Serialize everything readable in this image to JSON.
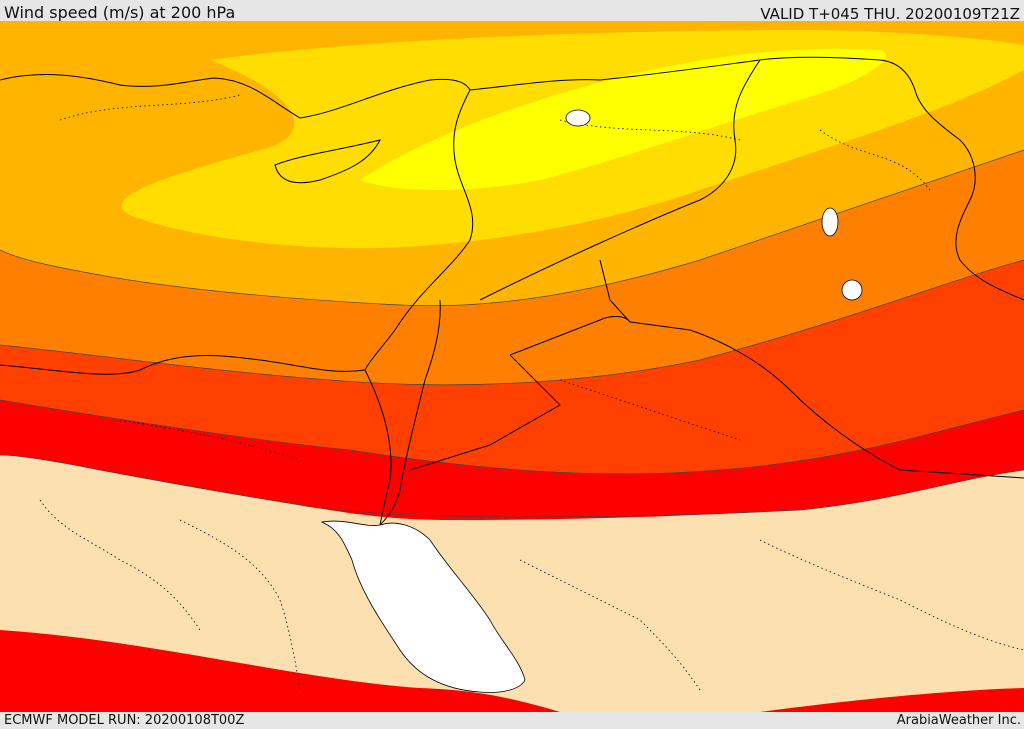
{
  "header": {
    "title": "Wind speed (m/s) at 200 hPa",
    "valid": "VALID T+045 THU. 20200109T21Z"
  },
  "footer": {
    "model_run": "ECMWF MODEL RUN: 20200108T00Z",
    "brand": "ArabiaWeather Inc."
  },
  "colors": {
    "band_yellow": "#ffff00",
    "band_gold": "#ffdd00",
    "band_amber": "#ffb400",
    "band_orange": "#ff8000",
    "band_redorange": "#ff4000",
    "band_red": "#ff0000",
    "below_threshold": "#fde0b0",
    "sea_red": "#ffffff",
    "coast": "#000000"
  }
}
